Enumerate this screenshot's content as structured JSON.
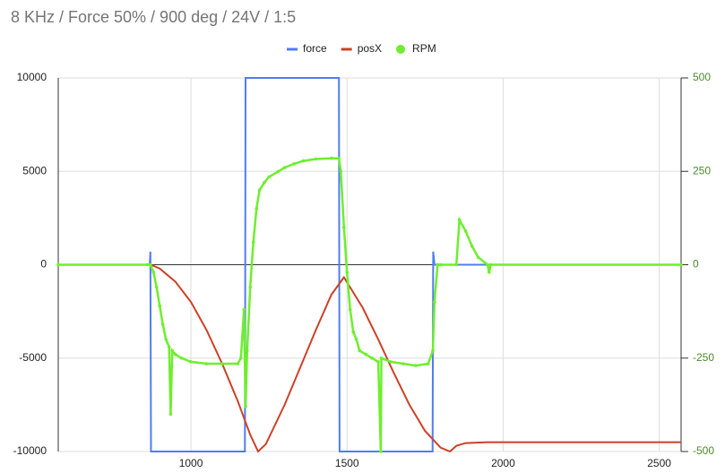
{
  "chart_data": {
    "type": "line",
    "title": "8 KHz / Force 50% / 900 deg / 24V / 1:5",
    "xlim": [
      575,
      2570
    ],
    "xticks": [
      1000,
      1500,
      2000,
      2500
    ],
    "ylim": [
      -10000,
      10000
    ],
    "yticks": [
      10000,
      5000,
      0,
      -5000,
      -10000
    ],
    "y2lim": [
      -500,
      500
    ],
    "y2ticks": [
      500,
      250,
      0,
      -250,
      -500
    ],
    "grid": true,
    "series": [
      {
        "name": "force",
        "color": "#4f7df0",
        "x": [
          575,
          868,
          870,
          872,
          1173,
          1175,
          1474,
          1476,
          1774,
          1776,
          1780,
          2570
        ],
        "values": [
          0,
          0,
          700,
          -10000,
          -10000,
          10000,
          10000,
          -10000,
          -10000,
          700,
          0,
          0
        ]
      },
      {
        "name": "posX",
        "color": "#cc4127",
        "x": [
          575,
          871,
          900,
          950,
          1000,
          1050,
          1100,
          1150,
          1190,
          1215,
          1240,
          1300,
          1350,
          1400,
          1450,
          1490,
          1550,
          1600,
          1650,
          1700,
          1750,
          1800,
          1830,
          1850,
          1880,
          1950,
          2570
        ],
        "values": [
          0,
          0,
          -200,
          -900,
          -2000,
          -3500,
          -5300,
          -7300,
          -9100,
          -10000,
          -9600,
          -7500,
          -5500,
          -3500,
          -1600,
          -670,
          -2300,
          -4000,
          -5800,
          -7500,
          -8900,
          -9800,
          -10000,
          -9700,
          -9550,
          -9500,
          -9500
        ]
      },
      {
        "name": "RPM",
        "color": "#6eee2e",
        "axis": "y2",
        "x": [
          575,
          860,
          870,
          880,
          890,
          900,
          910,
          920,
          930,
          935,
          940,
          950,
          970,
          1000,
          1050,
          1100,
          1150,
          1160,
          1170,
          1175,
          1180,
          1190,
          1200,
          1210,
          1220,
          1235,
          1250,
          1280,
          1300,
          1330,
          1360,
          1400,
          1450,
          1474,
          1480,
          1490,
          1500,
          1510,
          1520,
          1530,
          1540,
          1560,
          1580,
          1600,
          1608,
          1610,
          1640,
          1680,
          1720,
          1760,
          1775,
          1780,
          1790,
          1800,
          1850,
          1860,
          1880,
          1900,
          1920,
          1950,
          1955,
          1960,
          2570
        ],
        "values": [
          0,
          0,
          0,
          -20,
          -60,
          -110,
          -160,
          -200,
          -220,
          -400,
          -230,
          -240,
          -250,
          -260,
          -265,
          -265,
          -265,
          -250,
          -120,
          -380,
          -230,
          -60,
          60,
          150,
          200,
          220,
          235,
          250,
          260,
          270,
          278,
          283,
          285,
          285,
          250,
          100,
          -20,
          -120,
          -180,
          -200,
          -230,
          -240,
          -250,
          -260,
          -500,
          -250,
          -260,
          -265,
          -270,
          -265,
          -230,
          -100,
          0,
          0,
          0,
          120,
          90,
          50,
          20,
          0,
          -20,
          0,
          0
        ]
      }
    ]
  }
}
